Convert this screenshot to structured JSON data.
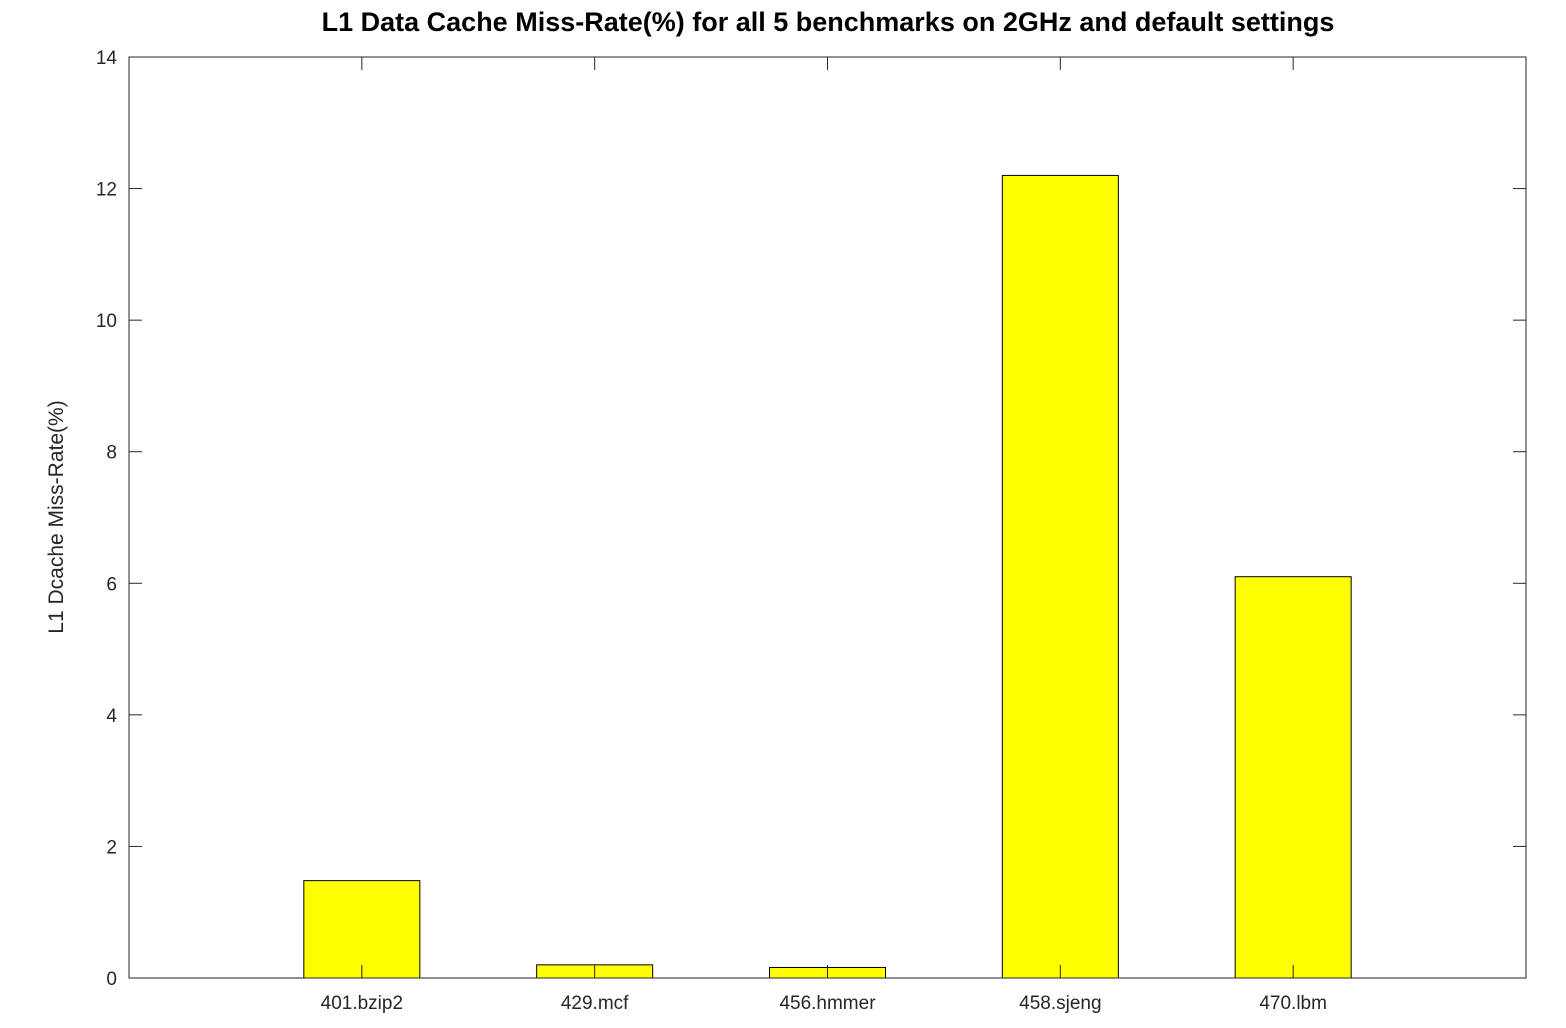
{
  "chart_data": {
    "type": "bar",
    "title": "L1 Data Cache Miss-Rate(%) for all 5 benchmarks on 2GHz and default settings",
    "xlabel": "",
    "ylabel": "L1 Dcache Miss-Rate(%)",
    "categories": [
      "401.bzip2",
      "429.mcf",
      "456.hmmer",
      "458.sjeng",
      "470.lbm"
    ],
    "values": [
      1.48,
      0.2,
      0.16,
      12.2,
      6.1
    ],
    "ylim": [
      0,
      14
    ],
    "yticks": [
      0,
      2,
      4,
      6,
      8,
      10,
      12,
      14
    ],
    "xlim": [
      0,
      6
    ],
    "grid": false,
    "legend": "none",
    "bar_color": "#ffff00",
    "edge_color": "#000000"
  }
}
